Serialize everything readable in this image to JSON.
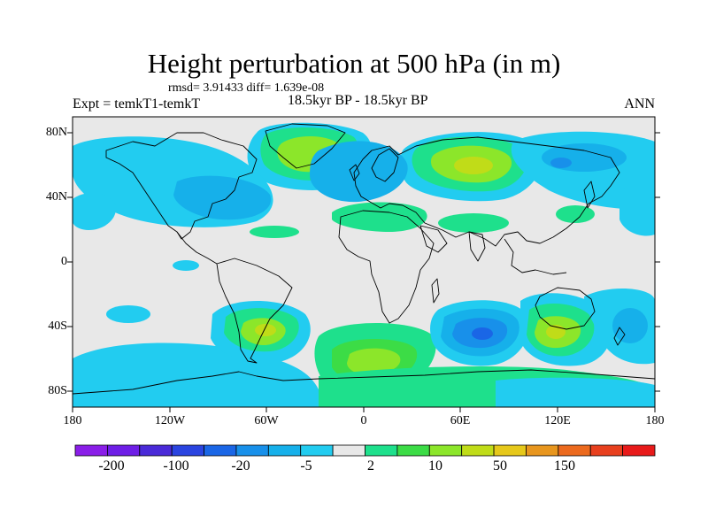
{
  "title": "Height perturbation at 500 hPa (in m)",
  "stats_line": "rmsd= 3.91433 diff= 1.639e-08",
  "left_label": "Expt = temkT1-temkT",
  "center_label": "18.5kyr BP - 18.5kyr BP",
  "right_label": "ANN",
  "lat_labels": [
    "80N",
    "40N",
    "0",
    "40S",
    "80S"
  ],
  "lon_labels": [
    "180",
    "120W",
    "60W",
    "0",
    "60E",
    "120E",
    "180"
  ],
  "colorbar": {
    "labels": [
      "-200",
      "-100",
      "-20",
      "-5",
      "2",
      "10",
      "50",
      "150"
    ],
    "colors": [
      "#8a1ee8",
      "#6e1ee6",
      "#4a2ad8",
      "#2a44e0",
      "#1a66e6",
      "#1890ea",
      "#16b0ea",
      "#22ccf0",
      "#e8e8e8",
      "#1ee08c",
      "#3cdc46",
      "#8ce62a",
      "#c0dc18",
      "#e6c81a",
      "#e8961e",
      "#ec6a1e",
      "#e8401e",
      "#e81a1a"
    ]
  },
  "colors": {
    "background_field": "#e8e8e8",
    "coastline": "#000000"
  }
}
